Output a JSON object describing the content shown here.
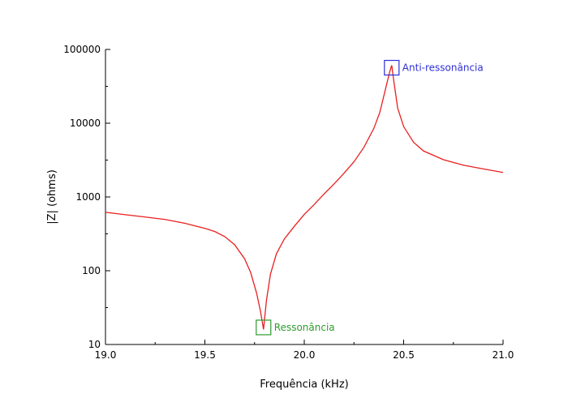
{
  "chart_data": {
    "type": "line",
    "xlabel": "Frequência (kHz)",
    "ylabel": "|Z| (ohms)",
    "xlim": [
      19.0,
      21.0
    ],
    "ylim": [
      10,
      100000
    ],
    "yscale": "log",
    "grid": false,
    "x_ticks": [
      "19.0",
      "19.5",
      "20.0",
      "20.5",
      "21.0"
    ],
    "y_ticks": [
      "10",
      "100",
      "1000",
      "10000",
      "100000"
    ],
    "series": [
      {
        "color": "#e8201f",
        "x": [
          19.0,
          19.1,
          19.2,
          19.3,
          19.4,
          19.5,
          19.55,
          19.6,
          19.65,
          19.7,
          19.73,
          19.76,
          19.78,
          19.795,
          19.81,
          19.83,
          19.86,
          19.9,
          19.95,
          20.0,
          20.05,
          20.1,
          20.15,
          20.2,
          20.25,
          20.3,
          20.35,
          20.38,
          20.41,
          20.43,
          20.44,
          20.45,
          20.47,
          20.5,
          20.55,
          20.6,
          20.7,
          20.8,
          20.9,
          21.0
        ],
        "y": [
          620,
          575,
          535,
          495,
          440,
          375,
          340,
          290,
          225,
          145,
          95,
          50,
          28,
          16,
          40,
          90,
          170,
          270,
          400,
          580,
          790,
          1100,
          1500,
          2100,
          3000,
          4700,
          8500,
          14000,
          30000,
          50000,
          61000,
          38000,
          16000,
          9000,
          5500,
          4200,
          3200,
          2700,
          2400,
          2150
        ]
      }
    ],
    "annotations": [
      {
        "text": "Anti-ressonância",
        "x": 20.44,
        "y": 61000,
        "color": "#2f2fd6"
      },
      {
        "text": "Ressonância",
        "x": 19.795,
        "y": 15,
        "color": "#2e9a2e"
      }
    ]
  }
}
